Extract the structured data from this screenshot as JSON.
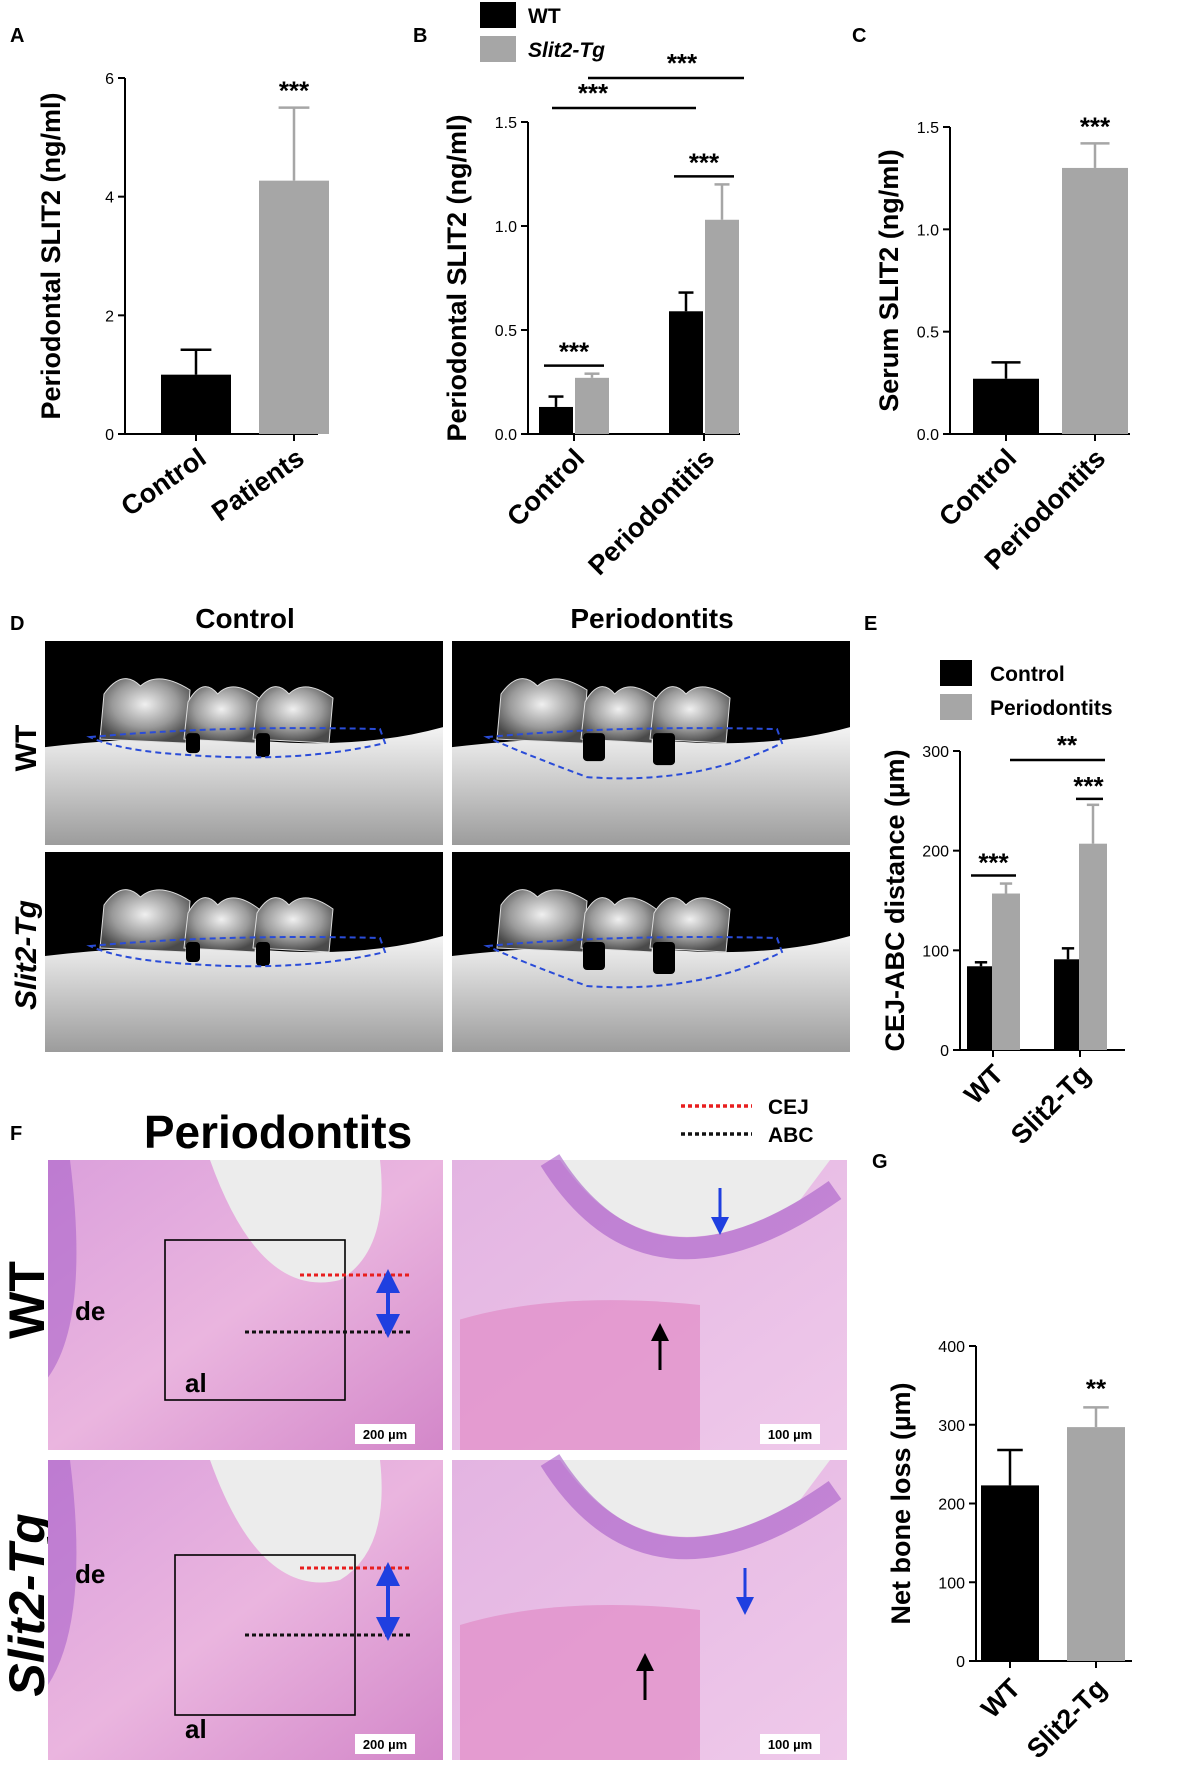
{
  "colors": {
    "wt": "#000000",
    "tg": "#a6a6a6",
    "cej_line": "#e81e1e",
    "abc_line": "#111111",
    "boundary": "#2a4cd8",
    "arrow_blue": "#1f3fe0",
    "he_pink": "#e7a6d8",
    "he_purple": "#a65cc8"
  },
  "panels": {
    "a": "A",
    "b": "B",
    "c": "C",
    "d": "D",
    "e": "E",
    "f": "F",
    "g": "G"
  },
  "legend_b": {
    "wt": "WT",
    "tg": "Slit2-Tg"
  },
  "legend_e": {
    "control": "Control",
    "periodontitis": "Periodontits"
  },
  "images_d": {
    "col_control": "Control",
    "col_periodontitis": "Periodontits",
    "row_wt": "WT",
    "row_tg": "Slit2-Tg"
  },
  "histology": {
    "title": "Periodontits",
    "legend_cej": "CEJ",
    "legend_abc": "ABC",
    "row_wt": "WT",
    "row_tg": "Slit2-Tg",
    "label_de": "de",
    "label_al": "al",
    "scale_low": "200 µm",
    "scale_high": "100 µm"
  },
  "chart_data": [
    {
      "id": "A",
      "type": "bar",
      "ylabel": "Periodontal SLIT2 (ng/ml)",
      "categories": [
        "Control",
        "Patients"
      ],
      "values": [
        1.0,
        4.27
      ],
      "errors": [
        0.42,
        1.23
      ],
      "ylim": [
        0,
        6
      ],
      "yticks": [
        "0",
        "2",
        "4",
        "6"
      ],
      "annotations": [
        {
          "text": "***",
          "target": "Patients"
        }
      ]
    },
    {
      "id": "B",
      "type": "bar",
      "ylabel": "Periodontal SLIT2 (ng/ml)",
      "categories": [
        "Control",
        "Periodontitis"
      ],
      "series": [
        {
          "name": "WT",
          "values": [
            0.13,
            0.59
          ],
          "errors": [
            0.05,
            0.09
          ]
        },
        {
          "name": "Slit2-Tg",
          "values": [
            0.27,
            1.03
          ],
          "errors": [
            0.02,
            0.17
          ]
        }
      ],
      "ylim": [
        0,
        1.5
      ],
      "yticks": [
        "0.0",
        "0.5",
        "1.0",
        "1.5"
      ],
      "annotations": [
        {
          "text": "***",
          "compare": "Control WT vs Slit2-Tg"
        },
        {
          "text": "***",
          "compare": "Periodontitis WT vs Slit2-Tg"
        },
        {
          "text": "***",
          "compare": "WT Control vs Periodontitis"
        },
        {
          "text": "***",
          "compare": "Slit2-Tg Control vs Periodontitis"
        }
      ]
    },
    {
      "id": "C",
      "type": "bar",
      "ylabel": "Serum SLIT2 (ng/ml)",
      "categories": [
        "Control",
        "Periodontits"
      ],
      "values": [
        0.27,
        1.3
      ],
      "errors": [
        0.08,
        0.12
      ],
      "ylim": [
        0,
        1.5
      ],
      "yticks": [
        "0.0",
        "0.5",
        "1.0",
        "1.5"
      ],
      "annotations": [
        {
          "text": "***",
          "target": "Periodontits"
        }
      ]
    },
    {
      "id": "E",
      "type": "bar",
      "ylabel": "CEJ-ABC distance (µm)",
      "categories": [
        "WT",
        "Slit2-Tg"
      ],
      "series": [
        {
          "name": "Control",
          "values": [
            84,
            91
          ],
          "errors": [
            4,
            11
          ]
        },
        {
          "name": "Periodontits",
          "values": [
            157,
            207
          ],
          "errors": [
            10,
            39
          ]
        }
      ],
      "ylim": [
        0,
        300
      ],
      "yticks": [
        "0",
        "100",
        "200",
        "300"
      ],
      "annotations": [
        {
          "text": "***",
          "compare": "WT Control vs Periodontits"
        },
        {
          "text": "***",
          "compare": "Slit2-Tg Control vs Periodontits"
        },
        {
          "text": "**",
          "compare": "Periodontits WT vs Slit2-Tg"
        }
      ]
    },
    {
      "id": "G",
      "type": "bar",
      "ylabel": "Net bone loss (µm)",
      "categories": [
        "WT",
        "Slit2-Tg"
      ],
      "values": [
        223,
        297
      ],
      "errors": [
        45,
        25
      ],
      "ylim": [
        0,
        400
      ],
      "yticks": [
        "0",
        "100",
        "200",
        "300",
        "400"
      ],
      "annotations": [
        {
          "text": "**",
          "target": "Slit2-Tg"
        }
      ]
    }
  ]
}
